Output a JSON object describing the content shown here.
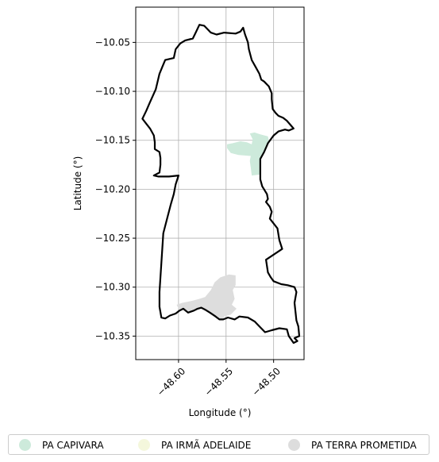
{
  "axes": {
    "xlabel": "Longitude (°)",
    "ylabel": "Latitude (°)",
    "xticks": [
      "−48.60",
      "−48.55",
      "−48.50"
    ],
    "yticks": [
      "−10.05",
      "−10.10",
      "−10.15",
      "−10.20",
      "−10.25",
      "−10.30",
      "−10.35"
    ],
    "grid": true
  },
  "legend": {
    "placement": "bottom",
    "entries": [
      {
        "label": "PA CAPIVARA",
        "color": "#cdeadb"
      },
      {
        "label": "PA IRMÃ ADELAIDE",
        "color": "#f4f7dc"
      },
      {
        "label": "PA TERRA PROMETIDA",
        "color": "#dddddd"
      }
    ]
  },
  "chart_data": {
    "type": "map",
    "xlim": [
      -48.645,
      -48.468
    ],
    "ylim": [
      -10.374,
      -10.014
    ],
    "boundary": [
      [
        -48.598,
        -10.051
      ],
      [
        -48.593,
        -10.048
      ],
      [
        -48.585,
        -10.046
      ],
      [
        -48.582,
        -10.04
      ],
      [
        -48.578,
        -10.032
      ],
      [
        -48.573,
        -10.033
      ],
      [
        -48.566,
        -10.04
      ],
      [
        -48.56,
        -10.042
      ],
      [
        -48.552,
        -10.04
      ],
      [
        -48.54,
        -10.041
      ],
      [
        -48.535,
        -10.039
      ],
      [
        -48.532,
        -10.035
      ],
      [
        -48.53,
        -10.042
      ],
      [
        -48.527,
        -10.05
      ],
      [
        -48.526,
        -10.057
      ],
      [
        -48.523,
        -10.068
      ],
      [
        -48.519,
        -10.075
      ],
      [
        -48.515,
        -10.082
      ],
      [
        -48.513,
        -10.088
      ],
      [
        -48.51,
        -10.09
      ],
      [
        -48.505,
        -10.095
      ],
      [
        -48.502,
        -10.102
      ],
      [
        -48.502,
        -10.108
      ],
      [
        -48.501,
        -10.118
      ],
      [
        -48.498,
        -10.122
      ],
      [
        -48.495,
        -10.125
      ],
      [
        -48.49,
        -10.127
      ],
      [
        -48.486,
        -10.13
      ],
      [
        -48.479,
        -10.138
      ],
      [
        -48.484,
        -10.14
      ],
      [
        -48.488,
        -10.139
      ],
      [
        -48.495,
        -10.141
      ],
      [
        -48.5,
        -10.145
      ],
      [
        -48.506,
        -10.153
      ],
      [
        -48.51,
        -10.162
      ],
      [
        -48.514,
        -10.169
      ],
      [
        -48.514,
        -10.178
      ],
      [
        -48.514,
        -10.19
      ],
      [
        -48.512,
        -10.197
      ],
      [
        -48.507,
        -10.205
      ],
      [
        -48.506,
        -10.21
      ],
      [
        -48.508,
        -10.213
      ],
      [
        -48.504,
        -10.218
      ],
      [
        -48.502,
        -10.223
      ],
      [
        -48.504,
        -10.23
      ],
      [
        -48.496,
        -10.24
      ],
      [
        -48.494,
        -10.252
      ],
      [
        -48.491,
        -10.261
      ],
      [
        -48.508,
        -10.272
      ],
      [
        -48.506,
        -10.285
      ],
      [
        -48.503,
        -10.29
      ],
      [
        -48.5,
        -10.294
      ],
      [
        -48.492,
        -10.297
      ],
      [
        -48.485,
        -10.298
      ],
      [
        -48.478,
        -10.3
      ],
      [
        -48.476,
        -10.305
      ],
      [
        -48.478,
        -10.316
      ],
      [
        -48.476,
        -10.334
      ],
      [
        -48.474,
        -10.34
      ],
      [
        -48.473,
        -10.35
      ],
      [
        -48.478,
        -10.352
      ],
      [
        -48.475,
        -10.355
      ],
      [
        -48.479,
        -10.357
      ],
      [
        -48.484,
        -10.35
      ],
      [
        -48.486,
        -10.343
      ],
      [
        -48.494,
        -10.342
      ],
      [
        -48.502,
        -10.344
      ],
      [
        -48.509,
        -10.346
      ],
      [
        -48.515,
        -10.34
      ],
      [
        -48.52,
        -10.335
      ],
      [
        -48.527,
        -10.331
      ],
      [
        -48.536,
        -10.33
      ],
      [
        -48.541,
        -10.333
      ],
      [
        -48.548,
        -10.331
      ],
      [
        -48.553,
        -10.333
      ],
      [
        -48.557,
        -10.333
      ],
      [
        -48.561,
        -10.33
      ],
      [
        -48.567,
        -10.326
      ],
      [
        -48.572,
        -10.323
      ],
      [
        -48.576,
        -10.321
      ],
      [
        -48.58,
        -10.322
      ],
      [
        -48.584,
        -10.324
      ],
      [
        -48.59,
        -10.326
      ],
      [
        -48.595,
        -10.322
      ],
      [
        -48.599,
        -10.324
      ],
      [
        -48.603,
        -10.327
      ],
      [
        -48.609,
        -10.329
      ],
      [
        -48.614,
        -10.332
      ],
      [
        -48.618,
        -10.331
      ],
      [
        -48.62,
        -10.32
      ],
      [
        -48.62,
        -10.305
      ],
      [
        -48.619,
        -10.29
      ],
      [
        -48.618,
        -10.275
      ],
      [
        -48.617,
        -10.26
      ],
      [
        -48.616,
        -10.245
      ],
      [
        -48.612,
        -10.23
      ],
      [
        -48.608,
        -10.215
      ],
      [
        -48.605,
        -10.205
      ],
      [
        -48.603,
        -10.195
      ],
      [
        -48.6,
        -10.186
      ],
      [
        -48.61,
        -10.187
      ],
      [
        -48.621,
        -10.187
      ],
      [
        -48.626,
        -10.186
      ],
      [
        -48.62,
        -10.183
      ],
      [
        -48.619,
        -10.175
      ],
      [
        -48.619,
        -10.168
      ],
      [
        -48.62,
        -10.162
      ],
      [
        -48.625,
        -10.159
      ],
      [
        -48.625,
        -10.152
      ],
      [
        -48.626,
        -10.145
      ],
      [
        -48.63,
        -10.138
      ],
      [
        -48.634,
        -10.133
      ],
      [
        -48.638,
        -10.128
      ],
      [
        -48.634,
        -10.12
      ],
      [
        -48.63,
        -10.111
      ],
      [
        -48.624,
        -10.098
      ],
      [
        -48.62,
        -10.082
      ],
      [
        -48.617,
        -10.075
      ],
      [
        -48.614,
        -10.068
      ],
      [
        -48.605,
        -10.066
      ],
      [
        -48.603,
        -10.057
      ],
      [
        -48.599,
        -10.052
      ]
    ],
    "regions": [
      {
        "name": "PA CAPIVARA",
        "polygon": [
          [
            -48.528,
            -10.152
          ],
          [
            -48.523,
            -10.154
          ],
          [
            -48.522,
            -10.149
          ],
          [
            -48.525,
            -10.143
          ],
          [
            -48.52,
            -10.142
          ],
          [
            -48.514,
            -10.144
          ],
          [
            -48.506,
            -10.146
          ],
          [
            -48.505,
            -10.15
          ],
          [
            -48.508,
            -10.155
          ],
          [
            -48.51,
            -10.162
          ],
          [
            -48.514,
            -10.169
          ],
          [
            -48.514,
            -10.178
          ],
          [
            -48.514,
            -10.185
          ],
          [
            -48.523,
            -10.186
          ],
          [
            -48.524,
            -10.178
          ],
          [
            -48.525,
            -10.171
          ],
          [
            -48.524,
            -10.166
          ],
          [
            -48.537,
            -10.165
          ],
          [
            -48.545,
            -10.163
          ],
          [
            -48.549,
            -10.158
          ],
          [
            -48.549,
            -10.154
          ],
          [
            -48.543,
            -10.153
          ],
          [
            -48.535,
            -10.151
          ]
        ]
      },
      {
        "name": "PA TERRA PROMETIDA",
        "polygon": [
          [
            -48.556,
            -10.29
          ],
          [
            -48.547,
            -10.287
          ],
          [
            -48.54,
            -10.288
          ],
          [
            -48.54,
            -10.298
          ],
          [
            -48.543,
            -10.303
          ],
          [
            -48.541,
            -10.312
          ],
          [
            -48.544,
            -10.318
          ],
          [
            -48.539,
            -10.322
          ],
          [
            -48.545,
            -10.328
          ],
          [
            -48.552,
            -10.33
          ],
          [
            -48.553,
            -10.333
          ],
          [
            -48.557,
            -10.333
          ],
          [
            -48.561,
            -10.33
          ],
          [
            -48.567,
            -10.326
          ],
          [
            -48.572,
            -10.323
          ],
          [
            -48.576,
            -10.321
          ],
          [
            -48.58,
            -10.322
          ],
          [
            -48.584,
            -10.324
          ],
          [
            -48.59,
            -10.326
          ],
          [
            -48.595,
            -10.322
          ],
          [
            -48.599,
            -10.324
          ],
          [
            -48.602,
            -10.318
          ],
          [
            -48.596,
            -10.316
          ],
          [
            -48.586,
            -10.314
          ],
          [
            -48.578,
            -10.312
          ],
          [
            -48.572,
            -10.31
          ],
          [
            -48.566,
            -10.303
          ],
          [
            -48.562,
            -10.295
          ]
        ]
      }
    ]
  }
}
